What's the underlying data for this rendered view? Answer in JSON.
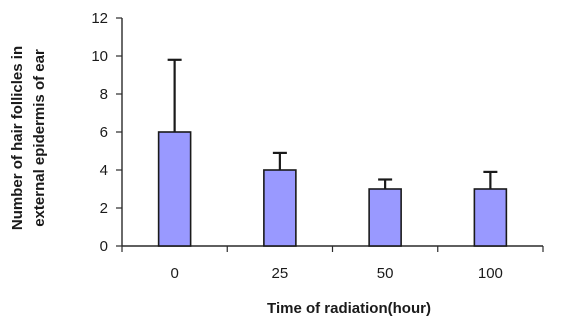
{
  "chart_data": {
    "type": "bar",
    "categories": [
      "0",
      "25",
      "50",
      "100"
    ],
    "values": [
      6,
      4,
      3,
      3
    ],
    "error_plus": [
      3.8,
      0.9,
      0.5,
      0.9
    ],
    "xlabel": "Time of radiation(hour)",
    "ylabel_lines": [
      "Number of hair follicles in",
      "external epidermis of ear"
    ],
    "ylim": [
      0,
      12
    ],
    "yticks": [
      0,
      2,
      4,
      6,
      8,
      10,
      12
    ],
    "grid": false,
    "legend": "none",
    "bar_color": "#9999ff",
    "bar_edge_color": "#1a1a1a",
    "error_bars": "upper only"
  }
}
